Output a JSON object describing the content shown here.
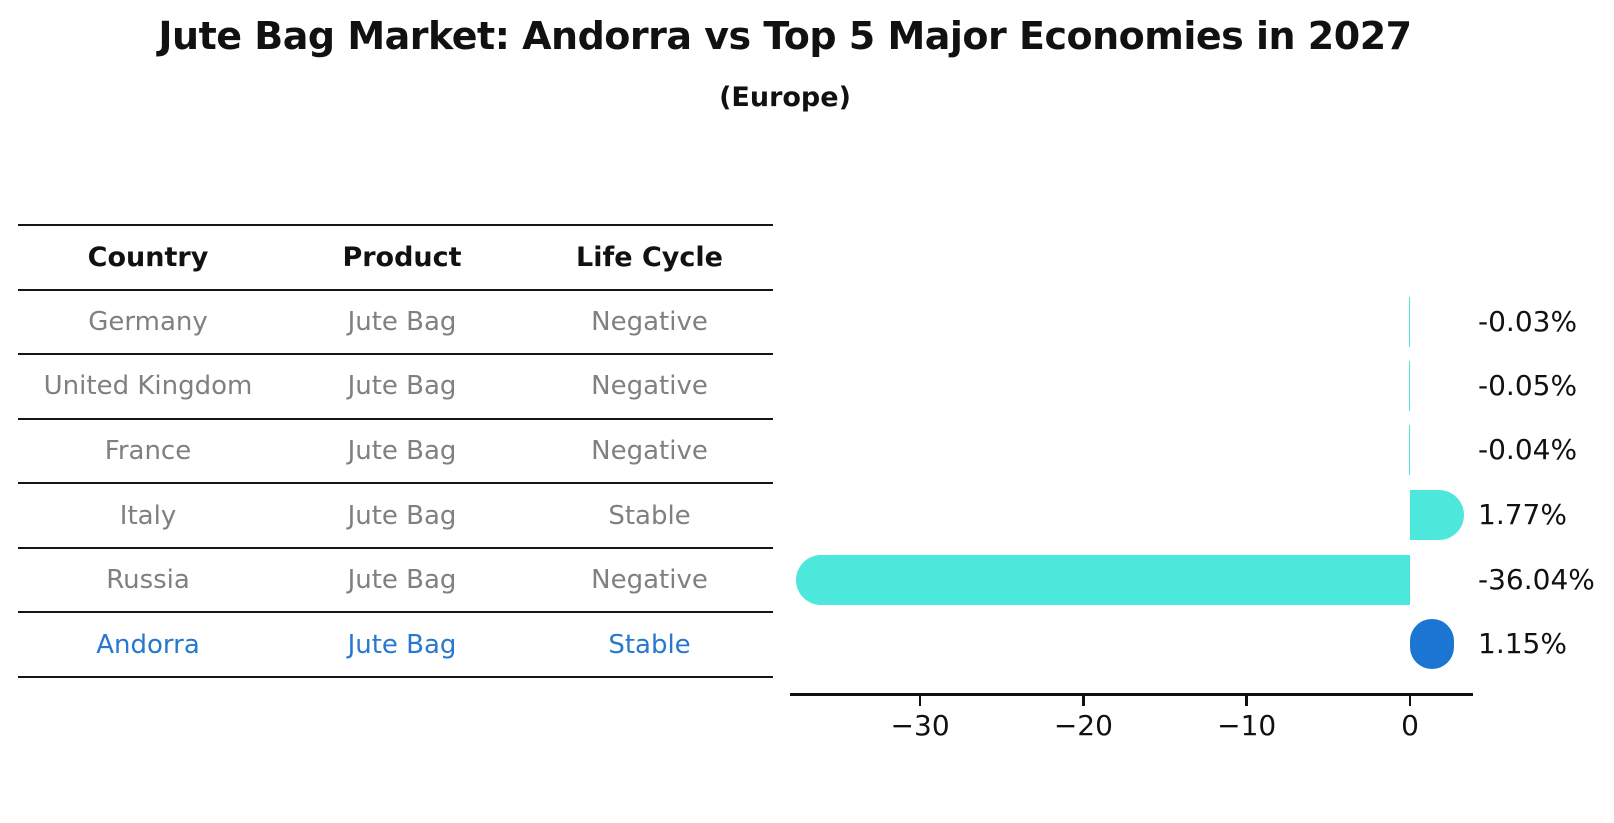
{
  "header": {
    "title": "Jute Bag Market: Andorra vs Top 5 Major Economies in 2027",
    "subtitle": "(Europe)"
  },
  "table": {
    "columns": [
      "Country",
      "Product",
      "Life Cycle"
    ],
    "rows": [
      {
        "country": "Germany",
        "product": "Jute Bag",
        "life_cycle": "Negative",
        "highlight": false
      },
      {
        "country": "United Kingdom",
        "product": "Jute Bag",
        "life_cycle": "Negative",
        "highlight": false
      },
      {
        "country": "France",
        "product": "Jute Bag",
        "life_cycle": "Negative",
        "highlight": false
      },
      {
        "country": "Italy",
        "product": "Jute Bag",
        "life_cycle": "Stable",
        "highlight": false
      },
      {
        "country": "Russia",
        "product": "Jute Bag",
        "life_cycle": "Negative",
        "highlight": false
      },
      {
        "country": "Andorra",
        "product": "Jute Bag",
        "life_cycle": "Stable",
        "highlight": true
      }
    ]
  },
  "chart_data": {
    "type": "bar",
    "orientation": "horizontal",
    "title": "Jute Bag Market: Andorra vs Top 5 Major Economies in 2027",
    "subtitle": "(Europe)",
    "categories": [
      "Germany",
      "United Kingdom",
      "France",
      "Italy",
      "Russia",
      "Andorra"
    ],
    "values": [
      -0.03,
      -0.05,
      -0.04,
      1.77,
      -36.04,
      1.15
    ],
    "value_labels": [
      "-0.03%",
      "-0.05%",
      "-0.04%",
      "1.77%",
      "-36.04%",
      "1.15%"
    ],
    "xlabel": "",
    "ylabel": "",
    "xlim": [
      -38,
      3.9
    ],
    "x_ticks": [
      -30,
      -20,
      -10,
      0
    ],
    "x_tick_labels": [
      "−30",
      "−20",
      "−10",
      "0"
    ],
    "grid": false,
    "legend": false
  },
  "colors": {
    "bar_default": "#4DE8DC",
    "bar_highlight": "#1A76D2",
    "table_text": "#808080",
    "table_text_highlight": "#2878CE",
    "axis": "#111111"
  }
}
